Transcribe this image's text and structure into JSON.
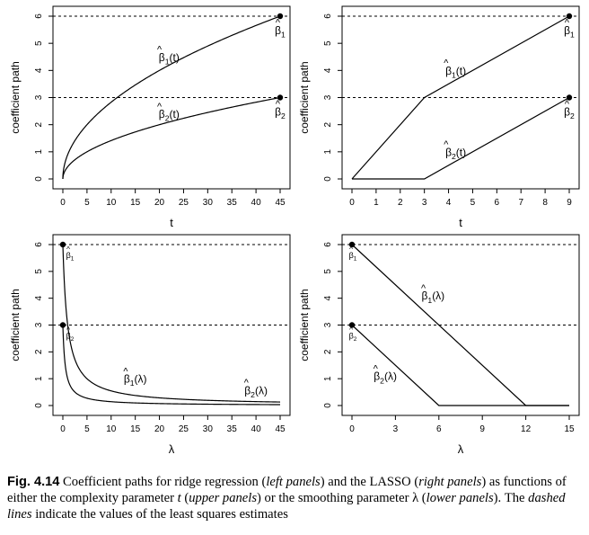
{
  "chart_data": [
    {
      "type": "line",
      "panel": "ridge-t",
      "xlabel": "t",
      "ylabel": "coefficient path",
      "xlim": [
        0,
        45
      ],
      "ylim": [
        0,
        6
      ],
      "xticks": [
        0,
        5,
        10,
        15,
        20,
        25,
        30,
        35,
        40,
        45
      ],
      "yticks": [
        0,
        1,
        2,
        3,
        4,
        5,
        6
      ],
      "grid": false,
      "reference_lines": [
        6,
        3
      ],
      "series": [
        {
          "name": "β̂1(t)",
          "x": [
            0,
            0.5,
            1,
            2,
            3,
            5,
            7.5,
            10,
            15,
            20,
            25,
            30,
            35,
            40,
            45
          ],
          "y": [
            0,
            0.63,
            0.89,
            1.26,
            1.55,
            2.0,
            2.45,
            2.83,
            3.46,
            4.0,
            4.47,
            4.9,
            5.29,
            5.66,
            6.0
          ]
        },
        {
          "name": "β̂2(t)",
          "x": [
            0,
            0.5,
            1,
            2,
            3,
            5,
            7.5,
            10,
            15,
            20,
            25,
            30,
            35,
            40,
            45
          ],
          "y": [
            0,
            0.32,
            0.45,
            0.63,
            0.77,
            1.0,
            1.22,
            1.41,
            1.73,
            2.0,
            2.24,
            2.45,
            2.65,
            2.83,
            3.0
          ]
        }
      ],
      "endpoints": [
        {
          "label": "β̂1",
          "x": 45,
          "y": 6
        },
        {
          "label": "β̂2",
          "x": 45,
          "y": 3
        }
      ]
    },
    {
      "type": "line",
      "panel": "lasso-t",
      "xlabel": "t",
      "ylabel": "coefficient path",
      "xlim": [
        0,
        9
      ],
      "ylim": [
        0,
        6
      ],
      "xticks": [
        0,
        1,
        2,
        3,
        4,
        5,
        6,
        7,
        8,
        9
      ],
      "yticks": [
        0,
        1,
        2,
        3,
        4,
        5,
        6
      ],
      "grid": false,
      "reference_lines": [
        6,
        3
      ],
      "series": [
        {
          "name": "β̂1(t)",
          "x": [
            0,
            3,
            9
          ],
          "y": [
            0,
            3,
            6
          ]
        },
        {
          "name": "β̂2(t)",
          "x": [
            0,
            3,
            9
          ],
          "y": [
            0,
            0,
            3
          ]
        }
      ],
      "endpoints": [
        {
          "label": "β̂1",
          "x": 9,
          "y": 6
        },
        {
          "label": "β̂2",
          "x": 9,
          "y": 3
        }
      ]
    },
    {
      "type": "line",
      "panel": "ridge-lambda",
      "xlabel": "λ",
      "ylabel": "coefficient path",
      "xlim": [
        0,
        45
      ],
      "ylim": [
        0,
        6
      ],
      "xticks": [
        0,
        5,
        10,
        15,
        20,
        25,
        30,
        35,
        40,
        45
      ],
      "yticks": [
        0,
        1,
        2,
        3,
        4,
        5,
        6
      ],
      "grid": false,
      "reference_lines": [
        6,
        3
      ],
      "series": [
        {
          "name": "β̂1(λ)",
          "x": [
            0,
            0.5,
            1,
            2,
            3,
            5,
            7.5,
            10,
            15,
            20,
            25,
            30,
            35,
            40,
            45
          ],
          "y": [
            6.0,
            4.0,
            3.0,
            2.0,
            1.5,
            1.0,
            0.71,
            0.55,
            0.38,
            0.29,
            0.23,
            0.19,
            0.17,
            0.15,
            0.13
          ]
        },
        {
          "name": "β̂2(λ)",
          "x": [
            0,
            0.5,
            1,
            2,
            3,
            5,
            7.5,
            10,
            15,
            20,
            25,
            30,
            35,
            40,
            45
          ],
          "y": [
            3.0,
            1.5,
            1.0,
            0.6,
            0.43,
            0.27,
            0.19,
            0.14,
            0.1,
            0.07,
            0.06,
            0.05,
            0.04,
            0.04,
            0.03
          ]
        }
      ],
      "endpoints": [
        {
          "label": "β̂1",
          "x": 0,
          "y": 6
        },
        {
          "label": "β̂2",
          "x": 0,
          "y": 3
        }
      ]
    },
    {
      "type": "line",
      "panel": "lasso-lambda",
      "xlabel": "λ",
      "ylabel": "coefficient path",
      "xlim": [
        0,
        15
      ],
      "ylim": [
        0,
        6
      ],
      "xticks": [
        0,
        3,
        6,
        9,
        12,
        15
      ],
      "yticks": [
        0,
        1,
        2,
        3,
        4,
        5,
        6
      ],
      "grid": false,
      "reference_lines": [
        6,
        3
      ],
      "series": [
        {
          "name": "β̂1(λ)",
          "x": [
            0,
            12,
            15
          ],
          "y": [
            6,
            0,
            0
          ]
        },
        {
          "name": "β̂2(λ)",
          "x": [
            0,
            6,
            15
          ],
          "y": [
            3,
            0,
            0
          ]
        }
      ],
      "endpoints": [
        {
          "label": "β̂1",
          "x": 0,
          "y": 6
        },
        {
          "label": "β̂2",
          "x": 0,
          "y": 3
        }
      ]
    }
  ],
  "caption": {
    "label": "Fig. 4.14",
    "t1": " Coefficient paths for ridge regression (",
    "e1": "left panels",
    "t2": ") and the LASSO (",
    "e2": "right panels",
    "t3": ") as functions of either the complexity parameter ",
    "e3": "t",
    "t4": " (",
    "e4": "upper panels",
    "t5": ") or the smoothing parameter λ (",
    "e5": "lower panels",
    "t6": "). The ",
    "e6": "dashed lines",
    "t7": " indicate the values of the least squares estimates"
  }
}
